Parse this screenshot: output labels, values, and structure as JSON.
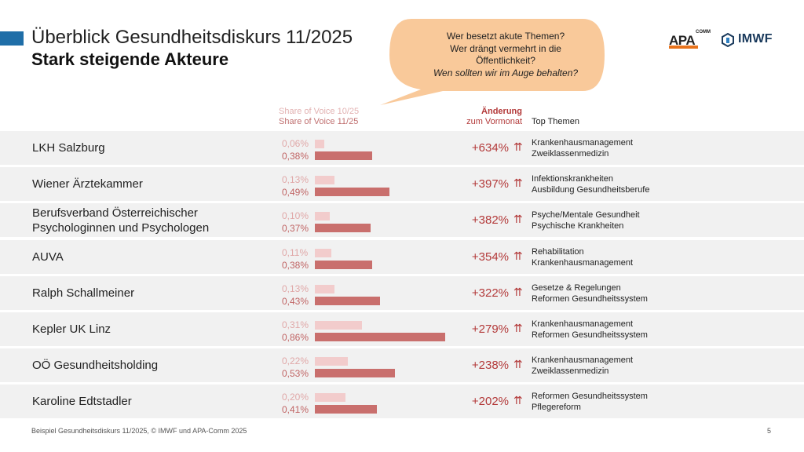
{
  "header": {
    "title": "Überblick Gesundheitsdiskurs 11/2025",
    "subtitle": "Stark steigende Akteure"
  },
  "callout": {
    "line1": "Wer besetzt akute Themen?",
    "line2": "Wer drängt vermehrt in die",
    "line3": "Öffentlichkeit?",
    "line4": "Wen sollten wir im Auge behalten?",
    "fill_color": "#f9c99a"
  },
  "logos": {
    "apa": "APA",
    "apa_sup": "COMM",
    "imwf": "IMWF"
  },
  "columns": {
    "sov_prev": "Share of Voice 10/25",
    "sov_curr": "Share of Voice 11/25",
    "change_1": "Änderung",
    "change_2": "zum Vormonat",
    "topics": "Top Themen"
  },
  "colors": {
    "prev_bar": "#f2cccc",
    "curr_bar": "#c96f6d",
    "change_text": "#b33a3a",
    "row_bg": "#f1f1f1",
    "accent": "#1f6ea8"
  },
  "chart_data": {
    "type": "bar",
    "orientation": "horizontal",
    "value_unit": "%",
    "xlim": [
      0,
      0.86
    ],
    "series": [
      {
        "name": "Share of Voice 10/25",
        "values": [
          0.06,
          0.13,
          0.1,
          0.11,
          0.13,
          0.31,
          0.22,
          0.2
        ]
      },
      {
        "name": "Share of Voice 11/25",
        "values": [
          0.38,
          0.49,
          0.37,
          0.38,
          0.43,
          0.86,
          0.53,
          0.41
        ]
      }
    ],
    "rows": [
      {
        "name": "LKH Salzburg",
        "prev_label": "0,06%",
        "curr_label": "0,38%",
        "prev": 0.06,
        "curr": 0.38,
        "change": "+634%",
        "topics": [
          "Krankenhausmanagement",
          "Zweiklassenmedizin"
        ]
      },
      {
        "name": "Wiener Ärztekammer",
        "prev_label": "0,13%",
        "curr_label": "0,49%",
        "prev": 0.13,
        "curr": 0.49,
        "change": "+397%",
        "topics": [
          "Infektionskrankheiten",
          "Ausbildung Gesundheitsberufe"
        ]
      },
      {
        "name": "Berufsverband Österreichischer",
        "name2": "Psychologinnen und Psychologen",
        "prev_label": "0,10%",
        "curr_label": "0,37%",
        "prev": 0.1,
        "curr": 0.37,
        "change": "+382%",
        "topics": [
          " Psyche/Mentale Gesundheit",
          "Psychische Krankheiten"
        ]
      },
      {
        "name": "AUVA",
        "prev_label": "0,11%",
        "curr_label": "0,38%",
        "prev": 0.11,
        "curr": 0.38,
        "change": "+354%",
        "topics": [
          "Rehabilitation",
          "Krankenhausmanagement"
        ]
      },
      {
        "name": "Ralph Schallmeiner",
        "prev_label": "0,13%",
        "curr_label": "0,43%",
        "prev": 0.13,
        "curr": 0.43,
        "change": "+322%",
        "topics": [
          "Gesetze & Regelungen",
          "Reformen Gesundheitssystem"
        ]
      },
      {
        "name": "Kepler UK Linz",
        "prev_label": "0,31%",
        "curr_label": "0,86%",
        "prev": 0.31,
        "curr": 0.86,
        "change": "+279%",
        "topics": [
          "Krankenhausmanagement",
          "Reformen Gesundheitssystem"
        ]
      },
      {
        "name": "OÖ Gesundheitsholding",
        "prev_label": "0,22%",
        "curr_label": "0,53%",
        "prev": 0.22,
        "curr": 0.53,
        "change": "+238%",
        "topics": [
          "Krankenhausmanagement",
          "Zweiklassenmedizin"
        ]
      },
      {
        "name": "Karoline Edtstadler",
        "prev_label": "0,20%",
        "curr_label": "0,41%",
        "prev": 0.2,
        "curr": 0.41,
        "change": "+202%",
        "topics": [
          "Reformen Gesundheitssystem",
          "Pflegereform"
        ]
      }
    ]
  },
  "footer": {
    "source": "Beispiel Gesundheitsdiskurs 11/2025, © IMWF und APA-Comm 2025",
    "page": "5"
  }
}
